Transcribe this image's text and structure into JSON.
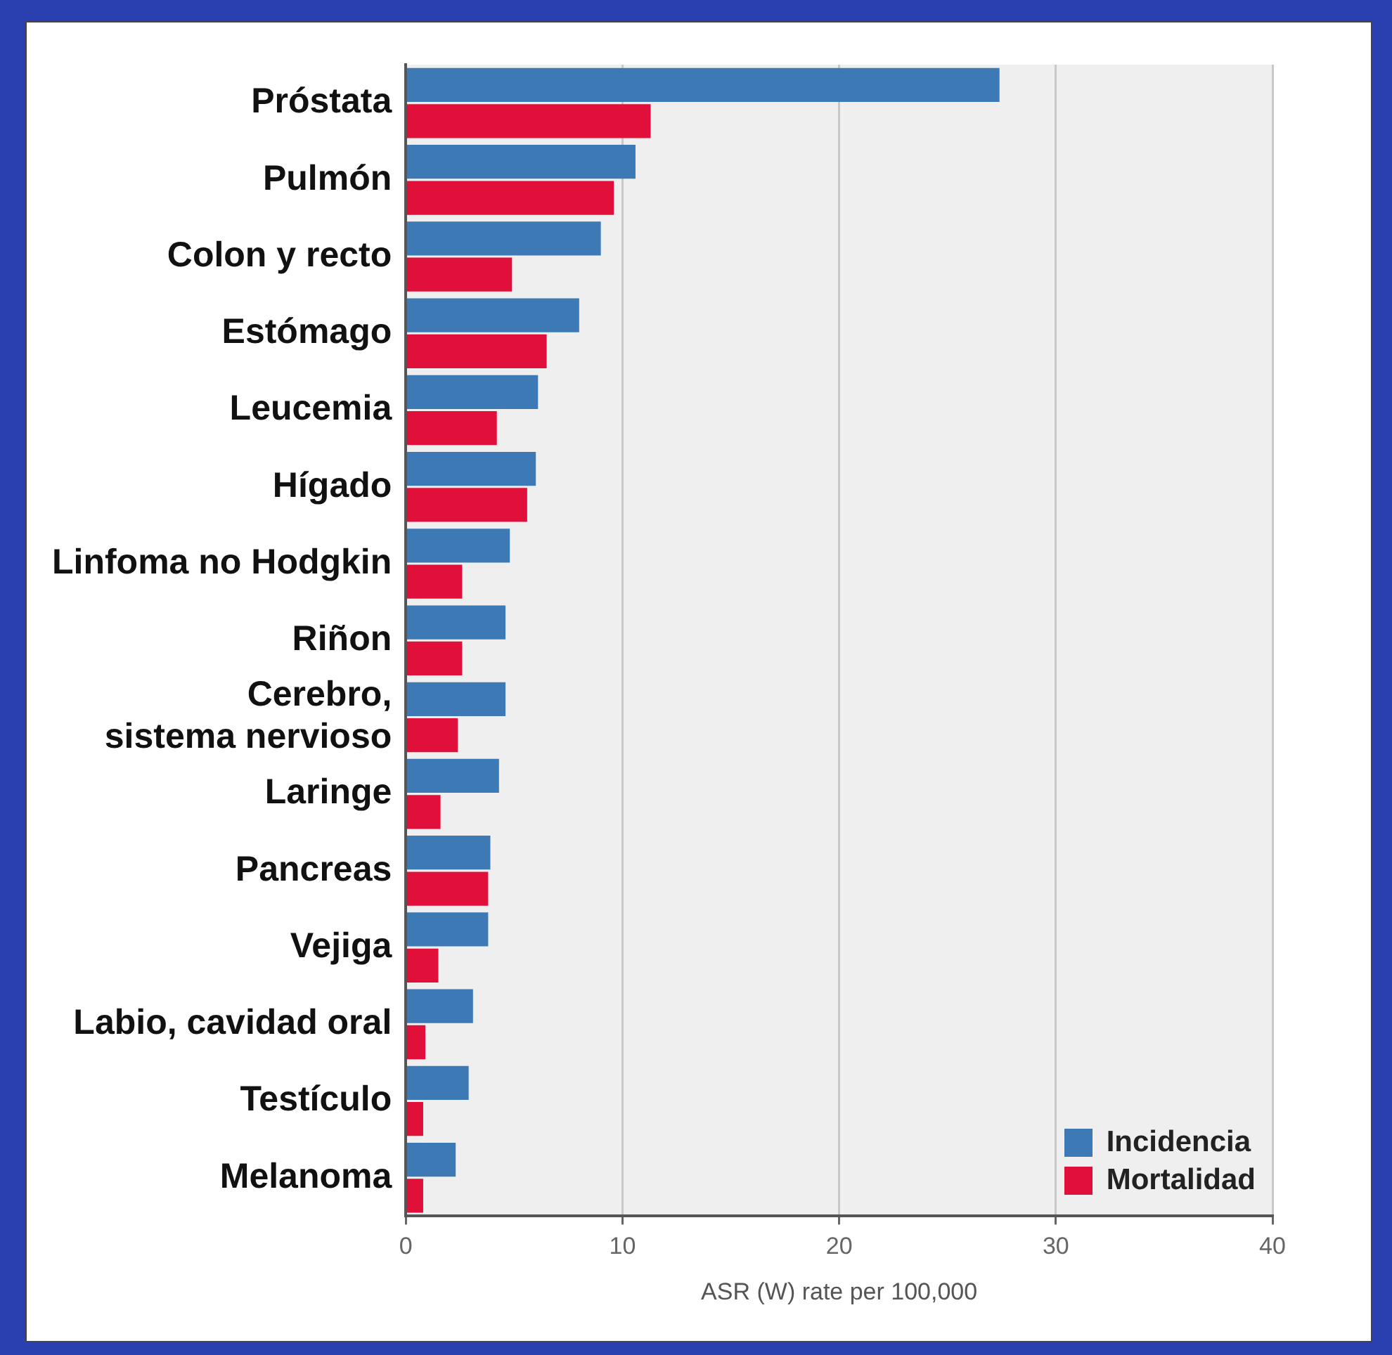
{
  "chart_data": {
    "type": "bar",
    "orientation": "horizontal",
    "xlabel": "ASR (W) rate per 100,000",
    "categories": [
      "Próstata",
      "Pulmón",
      "Colon y recto",
      "Estómago",
      "Leucemia",
      "Hígado",
      "Linfoma no Hodgkin",
      "Riñon",
      "Cerebro,\nsistema nervioso",
      "Laringe",
      "Pancreas",
      "Vejiga",
      "Labio, cavidad oral",
      "Testículo",
      "Melanoma"
    ],
    "series": [
      {
        "name": "Incidencia",
        "color": "#3d7ab5",
        "values": [
          27.4,
          10.6,
          9.0,
          8.0,
          6.1,
          6.0,
          4.8,
          4.6,
          4.6,
          4.3,
          3.9,
          3.8,
          3.1,
          2.9,
          2.3
        ]
      },
      {
        "name": "Mortalidad",
        "color": "#e0103a",
        "values": [
          11.3,
          9.6,
          4.9,
          6.5,
          4.2,
          5.6,
          2.6,
          2.6,
          2.4,
          1.6,
          3.8,
          1.5,
          0.9,
          0.8,
          0.8
        ]
      }
    ],
    "xlim": [
      0,
      40
    ],
    "xticks": [
      0,
      10,
      20,
      30,
      40
    ],
    "grid": "x",
    "legend": "bottom right"
  }
}
